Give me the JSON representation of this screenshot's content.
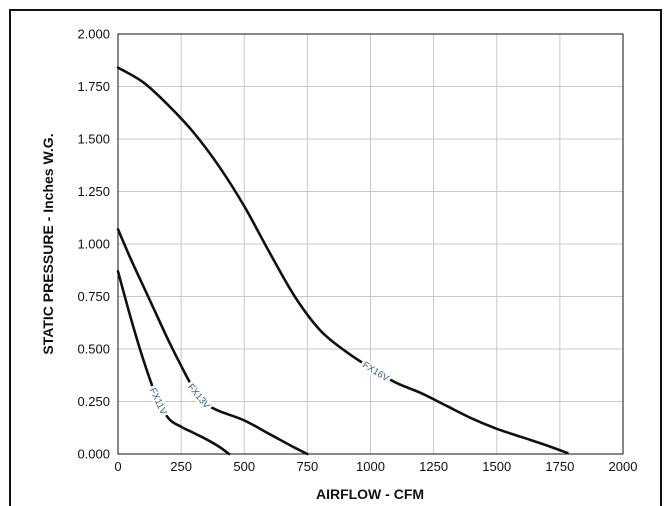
{
  "chart_data": {
    "type": "line",
    "xlabel": "AIRFLOW - CFM",
    "ylabel": "STATIC PRESSURE - Inches W.G.",
    "xlim": [
      0,
      2000
    ],
    "ylim": [
      0,
      2.0
    ],
    "x_ticks": [
      "0",
      "250",
      "500",
      "750",
      "1000",
      "1250",
      "1500",
      "1750",
      "2000"
    ],
    "y_ticks": [
      "0.000",
      "0.250",
      "0.500",
      "0.750",
      "1.000",
      "1.250",
      "1.500",
      "1.750",
      "2.000"
    ],
    "grid": true,
    "colors": {
      "curve": "#111111",
      "grid": "#c8c8c8",
      "label": "#2f5d8a"
    },
    "series": [
      {
        "name": "FX11V",
        "points": [
          [
            0,
            0.87
          ],
          [
            50,
            0.65
          ],
          [
            100,
            0.45
          ],
          [
            150,
            0.28
          ],
          [
            200,
            0.17
          ],
          [
            250,
            0.13
          ],
          [
            300,
            0.1
          ],
          [
            350,
            0.07
          ],
          [
            400,
            0.035
          ],
          [
            440,
            0.0
          ]
        ]
      },
      {
        "name": "FX13V",
        "points": [
          [
            0,
            1.07
          ],
          [
            50,
            0.93
          ],
          [
            100,
            0.8
          ],
          [
            150,
            0.67
          ],
          [
            200,
            0.54
          ],
          [
            250,
            0.42
          ],
          [
            300,
            0.31
          ],
          [
            350,
            0.24
          ],
          [
            400,
            0.205
          ],
          [
            500,
            0.16
          ],
          [
            600,
            0.095
          ],
          [
            700,
            0.03
          ],
          [
            750,
            0.0
          ]
        ]
      },
      {
        "name": "FX16V",
        "points": [
          [
            0,
            1.84
          ],
          [
            100,
            1.77
          ],
          [
            200,
            1.66
          ],
          [
            300,
            1.53
          ],
          [
            400,
            1.37
          ],
          [
            500,
            1.18
          ],
          [
            600,
            0.96
          ],
          [
            700,
            0.75
          ],
          [
            800,
            0.59
          ],
          [
            900,
            0.49
          ],
          [
            1000,
            0.41
          ],
          [
            1100,
            0.34
          ],
          [
            1200,
            0.29
          ],
          [
            1300,
            0.23
          ],
          [
            1400,
            0.17
          ],
          [
            1500,
            0.12
          ],
          [
            1600,
            0.08
          ],
          [
            1700,
            0.04
          ],
          [
            1780,
            0.005
          ]
        ]
      }
    ]
  }
}
